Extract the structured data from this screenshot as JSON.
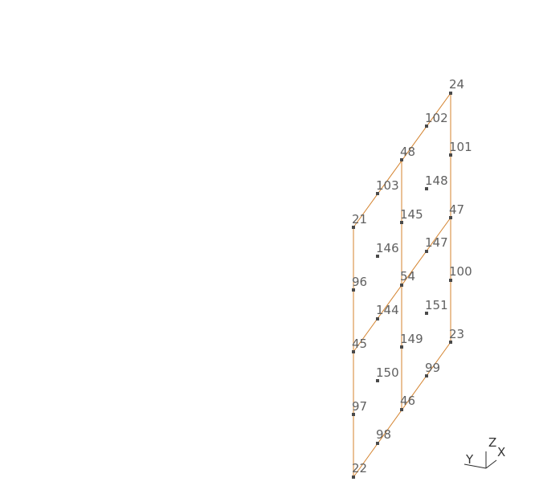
{
  "mesh": {
    "nodes": [
      {
        "id": "24"
      },
      {
        "id": "102"
      },
      {
        "id": "101"
      },
      {
        "id": "48"
      },
      {
        "id": "103"
      },
      {
        "id": "148"
      },
      {
        "id": "21"
      },
      {
        "id": "145"
      },
      {
        "id": "47"
      },
      {
        "id": "146"
      },
      {
        "id": "147"
      },
      {
        "id": "96"
      },
      {
        "id": "54"
      },
      {
        "id": "100"
      },
      {
        "id": "144"
      },
      {
        "id": "151"
      },
      {
        "id": "45"
      },
      {
        "id": "149"
      },
      {
        "id": "23"
      },
      {
        "id": "150"
      },
      {
        "id": "99"
      },
      {
        "id": "97"
      },
      {
        "id": "46"
      },
      {
        "id": "98"
      },
      {
        "id": "22"
      }
    ]
  },
  "colors": {
    "edge": "#d4832e",
    "node": "#4a4a4a",
    "label": "#606060"
  },
  "axes": {
    "z_label": "Z",
    "x_label": "X",
    "y_label": "Y"
  }
}
